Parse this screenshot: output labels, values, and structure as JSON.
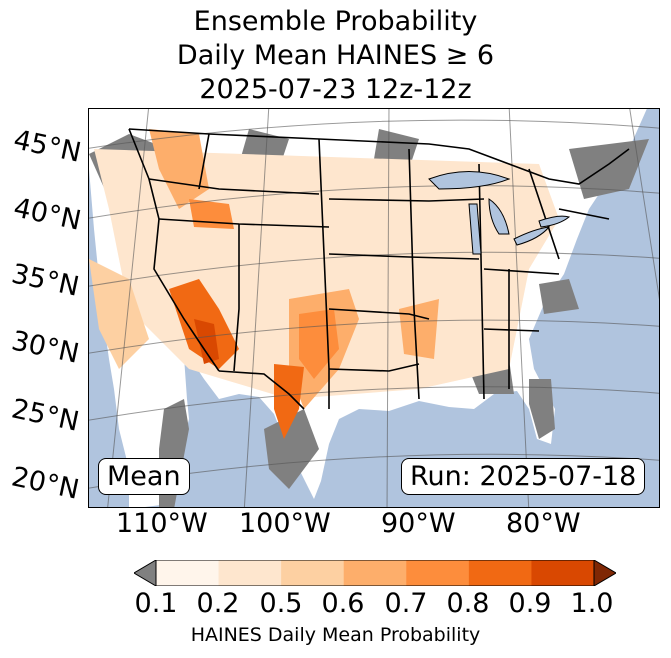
{
  "title": {
    "line1": "Ensemble Probability",
    "line2": "Daily Mean HAINES ≥ 6",
    "line3": "2025-07-23 12z-12z"
  },
  "map": {
    "latitude_labels": [
      "45°N",
      "40°N",
      "35°N",
      "30°N",
      "25°N",
      "20°N"
    ],
    "longitude_labels": [
      "110°W",
      "100°W",
      "90°W",
      "80°W"
    ],
    "stat_box": "Mean",
    "run_box": "Run: 2025-07-18",
    "colors": {
      "ocean": "#b0c4de",
      "no_data": "#808080",
      "land": "#ffffff"
    }
  },
  "legend": {
    "label": "HAINES Daily Mean Probability",
    "ticks": [
      "0.1",
      "0.2",
      "0.5",
      "0.6",
      "0.7",
      "0.8",
      "0.9",
      "1.0"
    ],
    "bins": [
      {
        "from": 0.1,
        "to": 0.2,
        "color": "#fff5eb"
      },
      {
        "from": 0.2,
        "to": 0.5,
        "color": "#fee6ce"
      },
      {
        "from": 0.5,
        "to": 0.6,
        "color": "#fdd0a2"
      },
      {
        "from": 0.6,
        "to": 0.7,
        "color": "#fdae6b"
      },
      {
        "from": 0.7,
        "to": 0.8,
        "color": "#fd8d3c"
      },
      {
        "from": 0.8,
        "to": 0.9,
        "color": "#f16913"
      },
      {
        "from": 0.9,
        "to": 1.0,
        "color": "#d94801"
      }
    ],
    "under_color": "#808080",
    "over_color": "#7f2704"
  }
}
